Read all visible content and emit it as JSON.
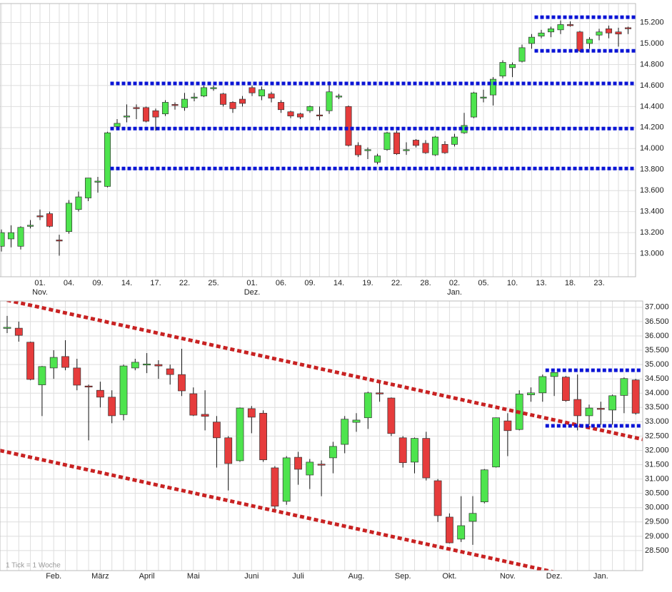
{
  "chart_data": [
    {
      "type": "candlestick",
      "categories": [
        null,
        null,
        null,
        null,
        "01.",
        null,
        null,
        "04.",
        null,
        null,
        "09.",
        null,
        null,
        "14.",
        null,
        null,
        "17.",
        null,
        null,
        "22.",
        null,
        null,
        "25.",
        null,
        null,
        null,
        "01.",
        null,
        null,
        "06.",
        null,
        null,
        "09.",
        null,
        null,
        "14.",
        null,
        null,
        "19.",
        null,
        null,
        "22.",
        null,
        null,
        "28.",
        null,
        null,
        "02.",
        null,
        null,
        "05.",
        null,
        null,
        "10.",
        null,
        null,
        "13.",
        null,
        null,
        "18.",
        null,
        null,
        "23.",
        null,
        null,
        null
      ],
      "month_labels": [
        {
          "category": 4,
          "label": "Nov."
        },
        {
          "category": 26,
          "label": "Dez."
        },
        {
          "category": 47,
          "label": "Jan."
        }
      ],
      "open": [
        13070,
        13140,
        13070,
        13260,
        13360,
        13380,
        13130,
        13210,
        13420,
        13530,
        13680,
        13640,
        14210,
        14300,
        14390,
        14390,
        14360,
        14330,
        14420,
        14390,
        14480,
        14500,
        14570,
        14520,
        14440,
        14470,
        14580,
        14500,
        14520,
        14440,
        14350,
        14330,
        14360,
        14320,
        14360,
        14490,
        14400,
        14030,
        13980,
        13870,
        13990,
        14150,
        13980,
        14080,
        14050,
        13940,
        14040,
        14040,
        14150,
        14300,
        14480,
        14510,
        14690,
        14770,
        14830,
        15000,
        15070,
        15110,
        15130,
        15180,
        15110,
        15000,
        15080,
        15140,
        15110,
        15150
      ],
      "high": [
        13230,
        13270,
        13260,
        13320,
        13420,
        13400,
        13180,
        13510,
        13590,
        13720,
        13730,
        14160,
        14280,
        14420,
        14420,
        14400,
        14380,
        14460,
        14440,
        14530,
        14530,
        14600,
        14600,
        14530,
        14450,
        14500,
        14600,
        14590,
        14540,
        14460,
        14360,
        14340,
        14410,
        14400,
        14640,
        14520,
        14410,
        14060,
        14010,
        13950,
        14160,
        14170,
        14060,
        14090,
        14080,
        14120,
        14070,
        14140,
        14340,
        14540,
        14560,
        14680,
        14840,
        14820,
        14990,
        15090,
        15130,
        15160,
        15220,
        15210,
        15120,
        15060,
        15140,
        15170,
        15150,
        15160
      ],
      "low": [
        13020,
        13060,
        13040,
        13240,
        13320,
        13250,
        12980,
        13190,
        13400,
        13500,
        13580,
        13630,
        14180,
        14250,
        14280,
        14250,
        14170,
        14310,
        14370,
        14360,
        14450,
        14490,
        14550,
        14400,
        14340,
        14400,
        14500,
        14460,
        14440,
        14340,
        14290,
        14280,
        14340,
        14270,
        14330,
        14470,
        14020,
        13920,
        13900,
        13850,
        13980,
        13940,
        13940,
        14010,
        13950,
        13930,
        13950,
        14020,
        14140,
        14290,
        14440,
        14410,
        14670,
        14680,
        14820,
        14950,
        15050,
        15060,
        15090,
        15160,
        14920,
        14950,
        15030,
        15050,
        14970,
        15090
      ],
      "close": [
        13200,
        13200,
        13250,
        13270,
        13350,
        13260,
        13120,
        13480,
        13540,
        13720,
        13690,
        14150,
        14240,
        14310,
        14380,
        14260,
        14300,
        14440,
        14410,
        14470,
        14490,
        14580,
        14580,
        14420,
        14380,
        14430,
        14530,
        14560,
        14480,
        14370,
        14310,
        14300,
        14400,
        14310,
        14540,
        14500,
        14030,
        13940,
        13990,
        13930,
        14150,
        13950,
        13990,
        14030,
        13960,
        14110,
        13960,
        14110,
        14220,
        14530,
        14490,
        14660,
        14820,
        14800,
        14960,
        15060,
        15100,
        15140,
        15180,
        15170,
        14930,
        15040,
        15110,
        15100,
        15090,
        15140
      ],
      "up_color": "#4ee44e",
      "down_color": "#e63c3c",
      "ylim": [
        12780,
        15380
      ],
      "yticks": [
        {
          "value": 13000,
          "label": "13.000"
        },
        {
          "value": 13200,
          "label": "13.200"
        },
        {
          "value": 13400,
          "label": "13.400"
        },
        {
          "value": 13600,
          "label": "13.600"
        },
        {
          "value": 13800,
          "label": "13.800"
        },
        {
          "value": 14000,
          "label": "14.000"
        },
        {
          "value": 14200,
          "label": "14.200"
        },
        {
          "value": 14400,
          "label": "14.400"
        },
        {
          "value": 14600,
          "label": "14.600"
        },
        {
          "value": 14800,
          "label": "14.800"
        },
        {
          "value": 15000,
          "label": "15.000"
        },
        {
          "value": 15200,
          "label": "15.200"
        }
      ],
      "grid": true,
      "levels": [
        {
          "value": 14620,
          "start": 11
        },
        {
          "value": 14190,
          "start": 11
        },
        {
          "value": 13810,
          "start": 11
        },
        {
          "value": 15250,
          "start": 55
        },
        {
          "value": 14930,
          "start": 55
        }
      ],
      "level_color": "#0a14d6"
    },
    {
      "type": "candlestick",
      "categories": [
        null,
        null,
        null,
        null,
        "Feb.",
        null,
        null,
        null,
        "März",
        null,
        null,
        null,
        "April",
        null,
        null,
        null,
        "Mai",
        null,
        null,
        null,
        null,
        "Juni",
        null,
        null,
        null,
        "Juli",
        null,
        null,
        null,
        null,
        "Aug.",
        null,
        null,
        null,
        "Sep.",
        null,
        null,
        null,
        "Okt.",
        null,
        null,
        null,
        null,
        "Nov.",
        null,
        null,
        null,
        "Dez.",
        null,
        null,
        null,
        "Jan.",
        null,
        null,
        null
      ],
      "open": [
        36280,
        36270,
        35780,
        34290,
        34880,
        35280,
        34880,
        34250,
        34100,
        33860,
        33250,
        34880,
        35010,
        35000,
        34850,
        34650,
        33980,
        33260,
        32990,
        32440,
        31640,
        33460,
        33300,
        31390,
        30220,
        31760,
        31140,
        31520,
        31740,
        32210,
        32980,
        33140,
        34010,
        33830,
        32440,
        31590,
        32420,
        30940,
        29670,
        28900,
        29520,
        30200,
        31420,
        33030,
        32730,
        33940,
        34010,
        34580,
        34560,
        33780,
        33210,
        33470,
        33410,
        33920,
        34460
      ],
      "high": [
        36700,
        36500,
        35800,
        34950,
        35500,
        35850,
        35200,
        34300,
        34400,
        34100,
        35000,
        35200,
        35400,
        35150,
        35000,
        35550,
        34200,
        34100,
        33200,
        32500,
        33500,
        33550,
        33400,
        31450,
        31800,
        31950,
        31700,
        31650,
        32300,
        33200,
        33300,
        34050,
        34350,
        33850,
        32500,
        32450,
        32650,
        31000,
        29800,
        30400,
        30400,
        31350,
        33150,
        33300,
        34100,
        34200,
        34650,
        34730,
        34600,
        34650,
        33600,
        33700,
        33950,
        34550,
        34500
      ],
      "low": [
        36100,
        35800,
        34450,
        33200,
        34500,
        34800,
        34100,
        32350,
        33500,
        32950,
        33050,
        34800,
        34700,
        34500,
        34300,
        33900,
        33200,
        32700,
        31400,
        30600,
        31600,
        32600,
        31600,
        29900,
        30100,
        30800,
        30650,
        30400,
        31200,
        31900,
        32650,
        32750,
        33700,
        32500,
        31400,
        31200,
        30950,
        29500,
        28750,
        28800,
        28700,
        30150,
        31400,
        31800,
        32700,
        33700,
        33700,
        33900,
        33700,
        32700,
        32900,
        32900,
        32900,
        33300,
        33250
      ],
      "close": [
        36300,
        36020,
        34480,
        34930,
        35250,
        34900,
        34280,
        34220,
        33860,
        33210,
        34950,
        35080,
        35020,
        34950,
        34650,
        34080,
        33230,
        33190,
        32440,
        31540,
        33480,
        33160,
        31670,
        30050,
        31740,
        31340,
        31590,
        31500,
        32140,
        33090,
        33060,
        34010,
        34000,
        32590,
        31570,
        32420,
        31040,
        29720,
        28770,
        29370,
        29800,
        31320,
        33140,
        32690,
        33970,
        34010,
        34580,
        34720,
        33740,
        33210,
        33480,
        33450,
        33910,
        34510,
        33300
      ],
      "up_color": "#4ee44e",
      "down_color": "#e63c3c",
      "ylim": [
        27800,
        37220
      ],
      "yticks": [
        {
          "value": 28500,
          "label": "28.500"
        },
        {
          "value": 29000,
          "label": "29.000"
        },
        {
          "value": 29500,
          "label": "29.500"
        },
        {
          "value": 30000,
          "label": "30.000"
        },
        {
          "value": 30500,
          "label": "30.500"
        },
        {
          "value": 31000,
          "label": "31.000"
        },
        {
          "value": 31500,
          "label": "31.500"
        },
        {
          "value": 32000,
          "label": "32.000"
        },
        {
          "value": 32500,
          "label": "32.500"
        },
        {
          "value": 33000,
          "label": "33.000"
        },
        {
          "value": 33500,
          "label": "33.500"
        },
        {
          "value": 34000,
          "label": "34.000"
        },
        {
          "value": 34500,
          "label": "34.500"
        },
        {
          "value": 35000,
          "label": "35.000"
        },
        {
          "value": 35500,
          "label": "35.500"
        },
        {
          "value": 36000,
          "label": "36.000"
        },
        {
          "value": 36500,
          "label": "36.500"
        },
        {
          "value": 37000,
          "label": "37.000"
        }
      ],
      "grid": true,
      "levels": [
        {
          "value": 34800,
          "start": 46
        },
        {
          "value": 32860,
          "start": 46
        }
      ],
      "level_color": "#0a14d6",
      "trendlines": [
        {
          "from": [
            0,
            37250
          ],
          "to": [
            54,
            32440
          ]
        },
        {
          "from": [
            0,
            31940
          ],
          "to": [
            50,
            27480
          ]
        }
      ],
      "trend_color": "#c82222",
      "note": "1 Tick = 1 Woche"
    }
  ]
}
